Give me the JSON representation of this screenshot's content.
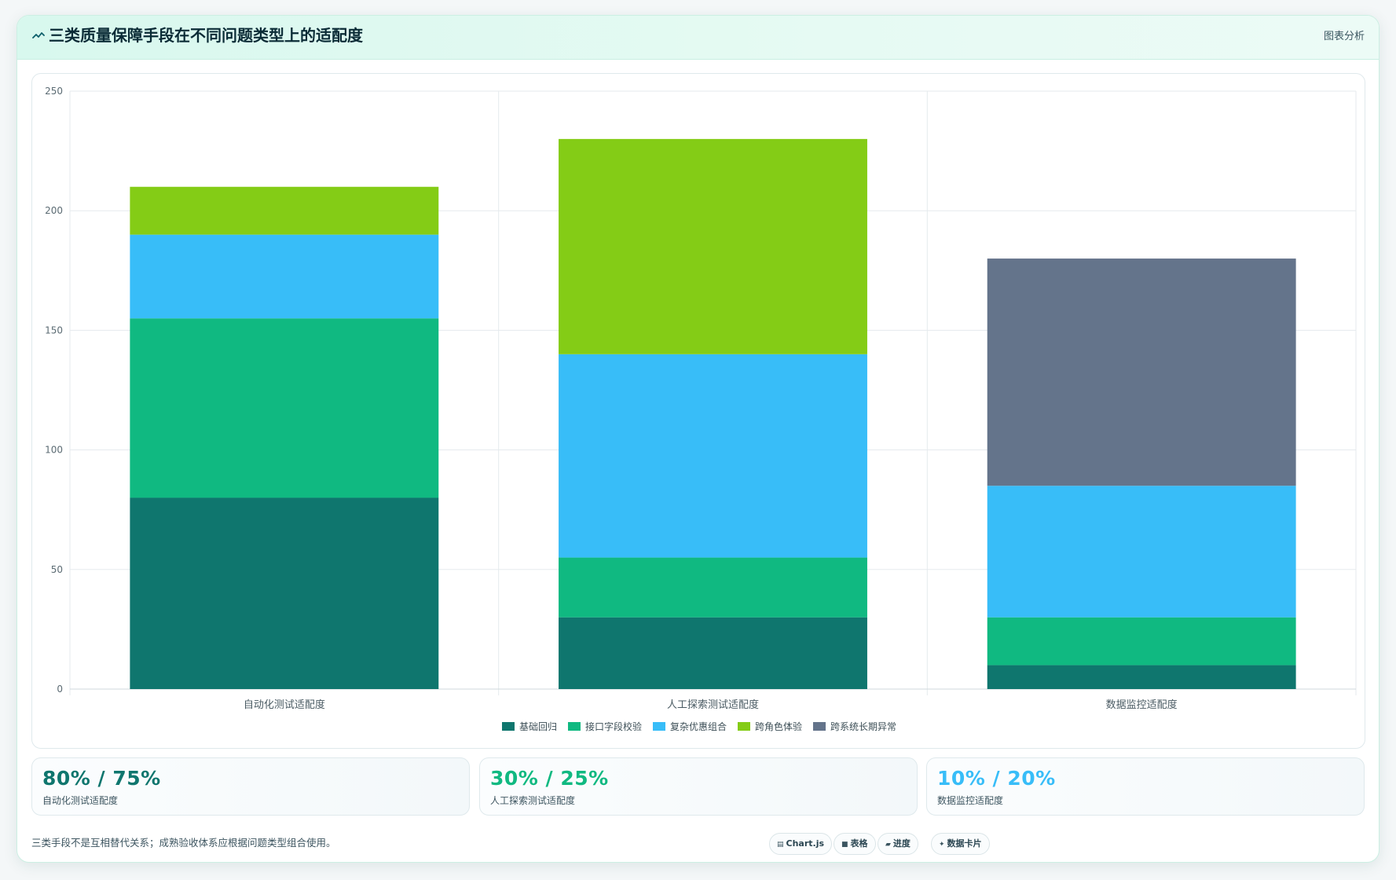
{
  "header": {
    "title": "三类质量保障手段在不同问题类型上的适配度",
    "title_icon": "trend-line-icon",
    "action_label": "图表分析"
  },
  "chart_data": {
    "type": "bar",
    "stacked": true,
    "categories": [
      "自动化测试适配度",
      "人工探索测试适配度",
      "数据监控适配度"
    ],
    "series": [
      {
        "name": "基础回归",
        "color": "#0f766e",
        "values": [
          80,
          30,
          10
        ]
      },
      {
        "name": "接口字段校验",
        "color": "#10b981",
        "values": [
          75,
          25,
          20
        ]
      },
      {
        "name": "复杂优惠组合",
        "color": "#38bdf8",
        "values": [
          35,
          85,
          55
        ]
      },
      {
        "name": "跨角色体验",
        "color": "#84cc16",
        "values": [
          20,
          90,
          0
        ]
      },
      {
        "name": "跨系统长期异常",
        "color": "#64748b",
        "values": [
          0,
          0,
          95
        ]
      }
    ],
    "ylim": [
      0,
      250
    ],
    "yticks": [
      "0",
      "50",
      "100",
      "150",
      "200",
      "250"
    ],
    "grid": true,
    "legend": "bottom",
    "title": "",
    "xlabel": "",
    "ylabel": ""
  },
  "stats": [
    {
      "value": "80% / 75%",
      "label": "自动化测试适配度",
      "color": "#0f766e"
    },
    {
      "value": "30% / 25%",
      "label": "人工探索测试适配度",
      "color": "#10b981"
    },
    {
      "value": "10% / 20%",
      "label": "数据监控适配度",
      "color": "#38bdf8"
    }
  ],
  "footer": {
    "note": "三类手段不是互相替代关系；成熟验收体系应根据问题类型组合使用。"
  },
  "tags": [
    {
      "label": "Chart.js",
      "icon": "chart-icon"
    },
    {
      "label": "表格",
      "icon": "table-icon"
    },
    {
      "label": "进度",
      "icon": "progress-icon"
    },
    {
      "label": "数据卡片",
      "icon": "card-icon"
    }
  ]
}
